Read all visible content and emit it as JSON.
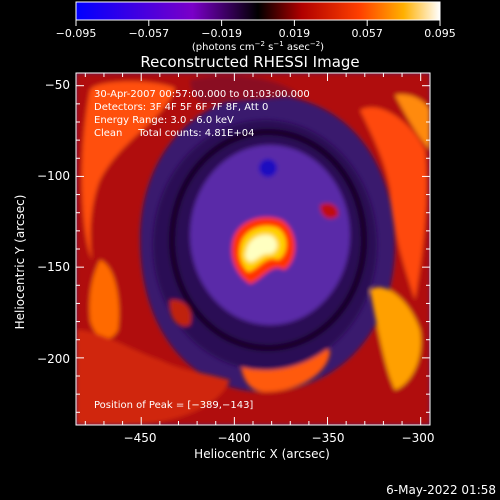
{
  "colorbar": {
    "ticks": [
      "−0.095",
      "−0.057",
      "−0.019",
      "0.019",
      "0.057",
      "0.095"
    ],
    "units_line": "(photons cm",
    "units_exp1": "−2",
    "units_mid": " s",
    "units_exp2": "−1",
    "units_end": " asec",
    "units_exp3": "−2",
    "units_close": ")",
    "range": [
      -0.095,
      0.095
    ]
  },
  "plot": {
    "title": "Reconstructed RHESSI Image",
    "xlabel": "Heliocentric X (arcsec)",
    "ylabel": "Heliocentric Y (arcsec)",
    "xticks": [
      "−450",
      "−400",
      "−350",
      "−300"
    ],
    "yticks": [
      "−50",
      "−100",
      "−150",
      "−200"
    ]
  },
  "info": {
    "line1": "30-Apr-2007 00:57:00.000 to 01:03:00.000",
    "line2": "Detectors: 3F 4F 5F 6F 7F 8F, Att 0",
    "line3": "Energy Range: 3.0 - 6.0 keV",
    "line4": "Clean     Total counts: 4.81E+04",
    "peak": "Position of Peak = [−389,−143]"
  },
  "footer": {
    "timestamp": "6-May-2022 01:58"
  },
  "chart_data": {
    "type": "heatmap",
    "title": "Reconstructed RHESSI Image",
    "xlabel": "Heliocentric X (arcsec)",
    "ylabel": "Heliocentric Y (arcsec)",
    "xlim": [
      -485,
      -295
    ],
    "ylim": [
      -237,
      -43
    ],
    "x_ticks": [
      -450,
      -400,
      -350,
      -300
    ],
    "y_ticks": [
      -50,
      -100,
      -150,
      -200
    ],
    "colorbar_range": [
      -0.095,
      0.095
    ],
    "colorbar_ticks": [
      -0.095,
      -0.057,
      -0.019,
      0.019,
      0.057,
      0.095
    ],
    "peak_position": [
      -389,
      -143
    ],
    "energy_range_keV": [
      3.0,
      6.0
    ],
    "total_counts": 48100
  }
}
